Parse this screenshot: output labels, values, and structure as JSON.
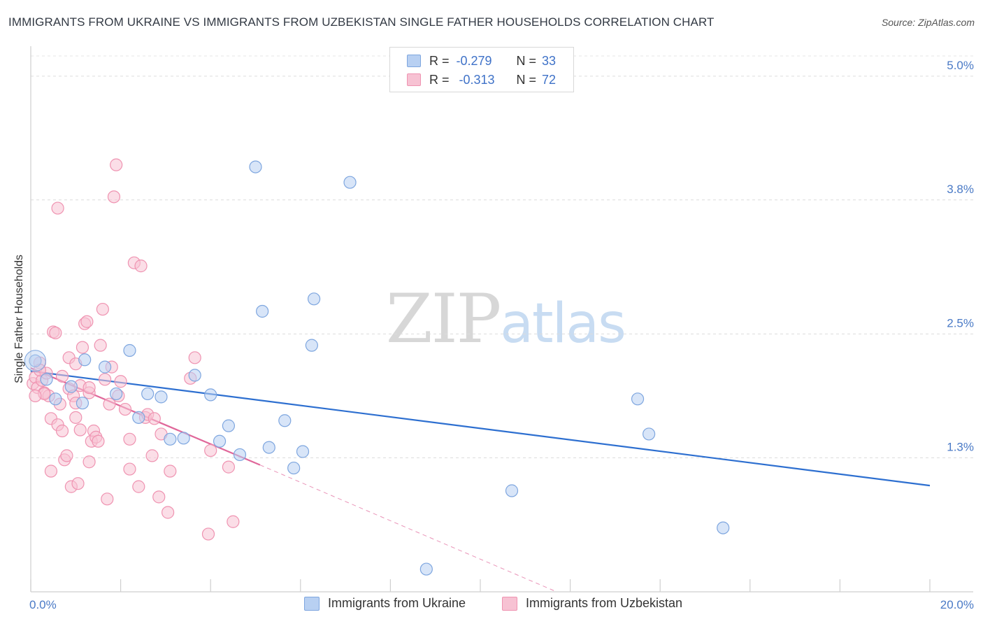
{
  "title": "IMMIGRANTS FROM UKRAINE VS IMMIGRANTS FROM UZBEKISTAN SINGLE FATHER HOUSEHOLDS CORRELATION CHART",
  "source": "Source: ZipAtlas.com",
  "watermark": {
    "zip": "ZIP",
    "atlas": "atlas"
  },
  "legend": {
    "r_label": "R =",
    "n_label": "N =",
    "ukraine": {
      "r": "-0.279",
      "n": "33"
    },
    "uzbekistan": {
      "r": "-0.313",
      "n": "72"
    }
  },
  "bottom_legend": {
    "ukraine": "Immigrants from Ukraine",
    "uzbekistan": "Immigrants from Uzbekistan"
  },
  "colors": {
    "ukraine_fill": "#b8d0f2",
    "ukraine_stroke": "#7ea6df",
    "ukraine_line": "#2d6fd0",
    "uzbekistan_fill": "#f7c2d3",
    "uzbekistan_stroke": "#ef93b1",
    "uzbekistan_line": "#e0679a",
    "tick_text": "#4a7ac6"
  },
  "chart_data": {
    "type": "scatter",
    "title": "IMMIGRANTS FROM UKRAINE VS IMMIGRANTS FROM UZBEKISTAN SINGLE FATHER HOUSEHOLDS CORRELATION CHART",
    "xlabel": "",
    "ylabel": "Single Father Households",
    "xlim": [
      0,
      20
    ],
    "ylim": [
      0,
      5.25
    ],
    "x_tick_labels": [
      {
        "value": 0,
        "label": "0.0%"
      },
      {
        "value": 20,
        "label": "20.0%"
      }
    ],
    "y_ticks": [
      {
        "value": 1.3,
        "label": "1.3%"
      },
      {
        "value": 2.5,
        "label": "2.5%"
      },
      {
        "value": 3.8,
        "label": "3.8%"
      },
      {
        "value": 5.0,
        "label": "5.0%"
      }
    ],
    "series": [
      {
        "name": "Immigrants from Ukraine",
        "color": "#7ea6df",
        "points": [
          {
            "x": 0.1,
            "y": 2.24
          },
          {
            "x": 0.35,
            "y": 2.06
          },
          {
            "x": 0.55,
            "y": 1.87
          },
          {
            "x": 0.9,
            "y": 1.99
          },
          {
            "x": 1.15,
            "y": 1.83
          },
          {
            "x": 1.2,
            "y": 2.25
          },
          {
            "x": 1.65,
            "y": 2.18
          },
          {
            "x": 1.9,
            "y": 1.92
          },
          {
            "x": 2.2,
            "y": 2.34
          },
          {
            "x": 2.4,
            "y": 1.69
          },
          {
            "x": 2.6,
            "y": 1.92
          },
          {
            "x": 2.9,
            "y": 1.89
          },
          {
            "x": 3.1,
            "y": 1.48
          },
          {
            "x": 3.4,
            "y": 1.49
          },
          {
            "x": 3.65,
            "y": 2.1
          },
          {
            "x": 4.0,
            "y": 1.91
          },
          {
            "x": 4.2,
            "y": 1.46
          },
          {
            "x": 4.4,
            "y": 1.61
          },
          {
            "x": 4.65,
            "y": 1.33
          },
          {
            "x": 5.0,
            "y": 4.12
          },
          {
            "x": 5.15,
            "y": 2.72
          },
          {
            "x": 5.3,
            "y": 1.4
          },
          {
            "x": 5.65,
            "y": 1.66
          },
          {
            "x": 5.85,
            "y": 1.2
          },
          {
            "x": 6.05,
            "y": 1.36
          },
          {
            "x": 6.25,
            "y": 2.39
          },
          {
            "x": 6.3,
            "y": 2.84
          },
          {
            "x": 7.1,
            "y": 3.97
          },
          {
            "x": 8.8,
            "y": 0.22
          },
          {
            "x": 10.7,
            "y": 0.98
          },
          {
            "x": 13.5,
            "y": 1.87
          },
          {
            "x": 13.75,
            "y": 1.53
          },
          {
            "x": 15.4,
            "y": 0.62
          }
        ]
      },
      {
        "name": "Immigrants from Uzbekistan",
        "color": "#ef93b1",
        "points": [
          {
            "x": 0.05,
            "y": 2.02
          },
          {
            "x": 0.1,
            "y": 2.08
          },
          {
            "x": 0.15,
            "y": 1.98
          },
          {
            "x": 0.2,
            "y": 2.22
          },
          {
            "x": 0.25,
            "y": 2.05
          },
          {
            "x": 0.3,
            "y": 1.93
          },
          {
            "x": 0.35,
            "y": 2.12
          },
          {
            "x": 0.4,
            "y": 1.9
          },
          {
            "x": 0.45,
            "y": 1.68
          },
          {
            "x": 0.45,
            "y": 1.17
          },
          {
            "x": 0.5,
            "y": 2.52
          },
          {
            "x": 0.55,
            "y": 2.51
          },
          {
            "x": 0.6,
            "y": 1.62
          },
          {
            "x": 0.65,
            "y": 1.82
          },
          {
            "x": 0.6,
            "y": 3.72
          },
          {
            "x": 0.7,
            "y": 1.56
          },
          {
            "x": 0.75,
            "y": 1.28
          },
          {
            "x": 0.8,
            "y": 1.32
          },
          {
            "x": 0.85,
            "y": 2.27
          },
          {
            "x": 0.85,
            "y": 1.97
          },
          {
            "x": 0.9,
            "y": 1.02
          },
          {
            "x": 0.95,
            "y": 1.9
          },
          {
            "x": 1.0,
            "y": 2.21
          },
          {
            "x": 1.0,
            "y": 1.69
          },
          {
            "x": 1.05,
            "y": 1.05
          },
          {
            "x": 1.1,
            "y": 1.57
          },
          {
            "x": 1.1,
            "y": 2.0
          },
          {
            "x": 1.15,
            "y": 2.37
          },
          {
            "x": 1.2,
            "y": 2.6
          },
          {
            "x": 1.25,
            "y": 2.62
          },
          {
            "x": 1.3,
            "y": 1.93
          },
          {
            "x": 1.3,
            "y": 1.26
          },
          {
            "x": 1.35,
            "y": 1.46
          },
          {
            "x": 1.4,
            "y": 1.56
          },
          {
            "x": 1.45,
            "y": 1.5
          },
          {
            "x": 1.5,
            "y": 1.46
          },
          {
            "x": 1.55,
            "y": 2.39
          },
          {
            "x": 1.6,
            "y": 2.74
          },
          {
            "x": 1.65,
            "y": 2.06
          },
          {
            "x": 1.7,
            "y": 0.9
          },
          {
            "x": 1.75,
            "y": 1.82
          },
          {
            "x": 1.8,
            "y": 2.18
          },
          {
            "x": 1.85,
            "y": 3.83
          },
          {
            "x": 1.9,
            "y": 4.14
          },
          {
            "x": 1.95,
            "y": 1.9
          },
          {
            "x": 2.0,
            "y": 2.04
          },
          {
            "x": 2.1,
            "y": 1.77
          },
          {
            "x": 2.2,
            "y": 1.19
          },
          {
            "x": 2.3,
            "y": 3.19
          },
          {
            "x": 2.4,
            "y": 1.02
          },
          {
            "x": 2.45,
            "y": 3.16
          },
          {
            "x": 2.55,
            "y": 1.69
          },
          {
            "x": 2.6,
            "y": 1.72
          },
          {
            "x": 2.7,
            "y": 1.32
          },
          {
            "x": 2.75,
            "y": 1.68
          },
          {
            "x": 2.85,
            "y": 0.92
          },
          {
            "x": 2.9,
            "y": 1.53
          },
          {
            "x": 3.05,
            "y": 0.77
          },
          {
            "x": 3.1,
            "y": 1.17
          },
          {
            "x": 3.55,
            "y": 2.07
          },
          {
            "x": 3.65,
            "y": 2.27
          },
          {
            "x": 3.95,
            "y": 0.56
          },
          {
            "x": 4.0,
            "y": 1.37
          },
          {
            "x": 4.4,
            "y": 1.21
          },
          {
            "x": 4.5,
            "y": 0.68
          },
          {
            "x": 2.2,
            "y": 1.48
          },
          {
            "x": 1.0,
            "y": 1.83
          },
          {
            "x": 0.3,
            "y": 1.92
          },
          {
            "x": 0.7,
            "y": 2.09
          },
          {
            "x": 1.3,
            "y": 1.98
          },
          {
            "x": 0.2,
            "y": 2.15
          },
          {
            "x": 0.1,
            "y": 1.9
          }
        ]
      }
    ],
    "trendlines": [
      {
        "series": "Immigrants from Ukraine",
        "x": [
          0,
          20
        ],
        "y": [
          2.14,
          1.03
        ],
        "style": "solid"
      },
      {
        "series": "Immigrants from Uzbekistan",
        "x": [
          0,
          5.1
        ],
        "y": [
          2.17,
          1.23
        ],
        "style": "solid"
      },
      {
        "series": "Immigrants from Uzbekistan",
        "x": [
          5.1,
          11.7
        ],
        "y": [
          1.23,
          0.0
        ],
        "style": "dashed"
      }
    ]
  }
}
